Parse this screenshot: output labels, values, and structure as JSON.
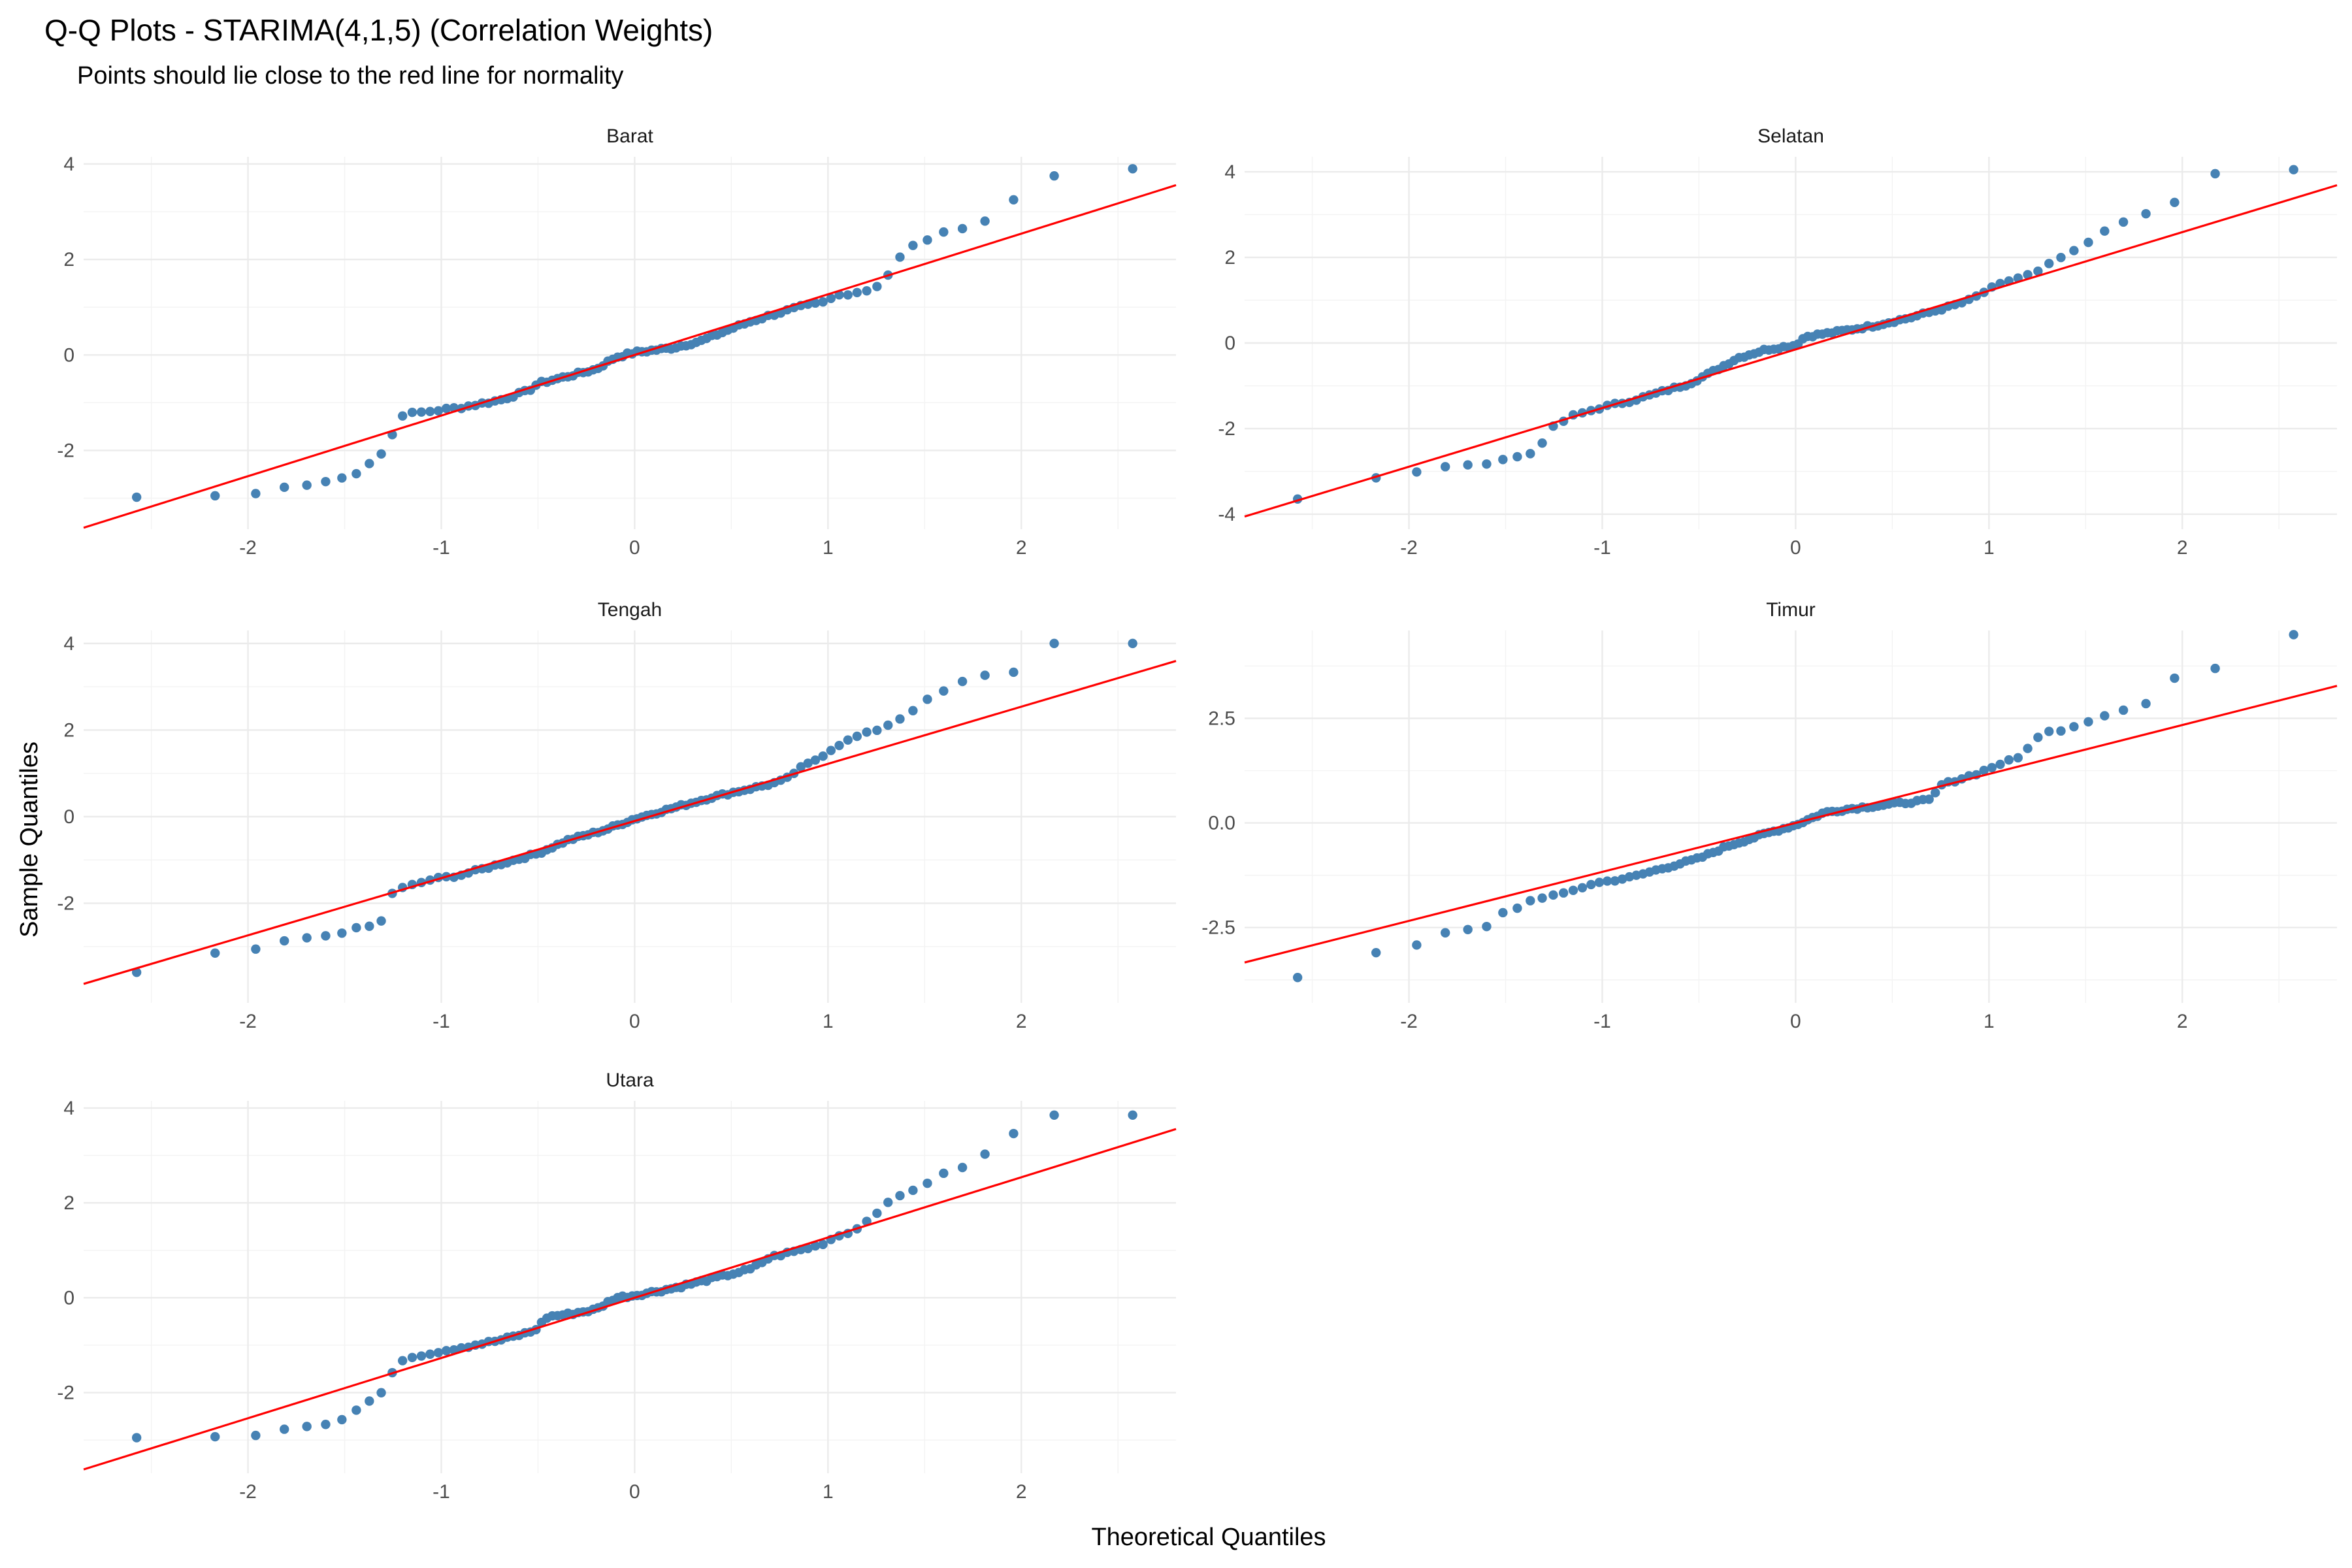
{
  "title": "Q-Q Plots - STARIMA(4,1,5) (Correlation Weights)",
  "subtitle": "Points should lie close to the red line for normality",
  "chart_data": {
    "type": "scatter",
    "facet_layout": "2 columns, 3 rows",
    "xlabel": "Theoretical Quantiles",
    "ylabel": "Sample Quantiles",
    "x_ticks": [
      -2,
      -1,
      0,
      1,
      2
    ],
    "xlim": [
      -2.85,
      2.8
    ],
    "grid": true,
    "point_color": "#4682B4",
    "line_color": "#FF0000",
    "panels": [
      {
        "name": "Barat",
        "ylim": [
          -3.65,
          4.15
        ],
        "y_ticks": [
          -2,
          0,
          2,
          4
        ],
        "y_tick_labels": [
          "-2",
          "0",
          "2",
          "4"
        ],
        "line": {
          "intercept": 0.0,
          "slope": 1.27
        },
        "anchors": [
          [
            -2.58,
            -2.98
          ],
          [
            -2.17,
            -2.95
          ],
          [
            -1.94,
            -2.9
          ],
          [
            -1.79,
            -2.75
          ],
          [
            -1.66,
            -2.72
          ],
          [
            -1.55,
            -2.6
          ],
          [
            -1.46,
            -2.55
          ],
          [
            -1.4,
            -2.3
          ],
          [
            -1.33,
            -2.2
          ],
          [
            -1.27,
            -1.8
          ],
          [
            -1.2,
            -1.25
          ],
          [
            -1.1,
            -1.2
          ],
          [
            -0.9,
            -1.1
          ],
          [
            -0.7,
            -0.95
          ],
          [
            -0.55,
            -0.75
          ],
          [
            -0.5,
            -0.6
          ],
          [
            -0.35,
            -0.45
          ],
          [
            -0.2,
            -0.3
          ],
          [
            -0.1,
            -0.05
          ],
          [
            0.0,
            0.05
          ],
          [
            0.2,
            0.15
          ],
          [
            0.35,
            0.3
          ],
          [
            0.5,
            0.55
          ],
          [
            0.6,
            0.7
          ],
          [
            0.72,
            0.85
          ],
          [
            0.85,
            1.0
          ],
          [
            0.98,
            1.1
          ],
          [
            1.05,
            1.25
          ],
          [
            1.2,
            1.35
          ],
          [
            1.28,
            1.5
          ],
          [
            1.4,
            2.2
          ],
          [
            1.5,
            2.4
          ],
          [
            1.6,
            2.55
          ],
          [
            1.75,
            2.7
          ],
          [
            1.9,
            2.95
          ],
          [
            1.97,
            3.3
          ],
          [
            2.17,
            3.75
          ],
          [
            2.55,
            3.9
          ]
        ]
      },
      {
        "name": "Selatan",
        "ylim": [
          -4.35,
          4.35
        ],
        "y_ticks": [
          -4,
          -2,
          0,
          2,
          4
        ],
        "y_tick_labels": [
          "-4",
          "-2",
          "0",
          "2",
          "4"
        ],
        "line": {
          "intercept": -0.15,
          "slope": 1.37
        },
        "anchors": [
          [
            -2.58,
            -3.65
          ],
          [
            -2.17,
            -3.15
          ],
          [
            -1.94,
            -3.0
          ],
          [
            -1.8,
            -2.88
          ],
          [
            -1.7,
            -2.85
          ],
          [
            -1.6,
            -2.8
          ],
          [
            -1.5,
            -2.7
          ],
          [
            -1.42,
            -2.65
          ],
          [
            -1.35,
            -2.55
          ],
          [
            -1.3,
            -2.25
          ],
          [
            -1.25,
            -1.95
          ],
          [
            -1.15,
            -1.7
          ],
          [
            -1.0,
            -1.5
          ],
          [
            -0.85,
            -1.35
          ],
          [
            -0.7,
            -1.15
          ],
          [
            -0.55,
            -0.95
          ],
          [
            -0.42,
            -0.65
          ],
          [
            -0.3,
            -0.35
          ],
          [
            -0.15,
            -0.15
          ],
          [
            0.0,
            -0.05
          ],
          [
            0.05,
            0.15
          ],
          [
            0.2,
            0.25
          ],
          [
            0.4,
            0.4
          ],
          [
            0.6,
            0.6
          ],
          [
            0.8,
            0.85
          ],
          [
            0.9,
            1.0
          ],
          [
            1.0,
            1.25
          ],
          [
            1.1,
            1.45
          ],
          [
            1.25,
            1.65
          ],
          [
            1.35,
            1.95
          ],
          [
            1.45,
            2.15
          ],
          [
            1.55,
            2.45
          ],
          [
            1.65,
            2.75
          ],
          [
            1.8,
            3.0
          ],
          [
            1.95,
            3.25
          ],
          [
            2.15,
            3.95
          ],
          [
            2.55,
            4.05
          ]
        ]
      },
      {
        "name": "Tengah",
        "ylim": [
          -4.3,
          4.3
        ],
        "y_ticks": [
          -2,
          0,
          2,
          4
        ],
        "y_tick_labels": [
          "-2",
          "0",
          "2",
          "4"
        ],
        "line": {
          "intercept": -0.1,
          "slope": 1.32
        },
        "anchors": [
          [
            -2.58,
            -3.6
          ],
          [
            -2.17,
            -3.15
          ],
          [
            -1.94,
            -3.05
          ],
          [
            -1.8,
            -2.85
          ],
          [
            -1.7,
            -2.8
          ],
          [
            -1.6,
            -2.75
          ],
          [
            -1.5,
            -2.65
          ],
          [
            -1.45,
            -2.6
          ],
          [
            -1.38,
            -2.55
          ],
          [
            -1.33,
            -2.45
          ],
          [
            -1.3,
            -2.4
          ],
          [
            -1.27,
            -1.8
          ],
          [
            -1.2,
            -1.65
          ],
          [
            -1.05,
            -1.45
          ],
          [
            -0.9,
            -1.35
          ],
          [
            -0.7,
            -1.1
          ],
          [
            -0.5,
            -0.85
          ],
          [
            -0.35,
            -0.55
          ],
          [
            -0.15,
            -0.3
          ],
          [
            0.0,
            -0.05
          ],
          [
            0.2,
            0.2
          ],
          [
            0.4,
            0.45
          ],
          [
            0.55,
            0.6
          ],
          [
            0.7,
            0.75
          ],
          [
            0.78,
            0.85
          ],
          [
            0.85,
            1.1
          ],
          [
            0.95,
            1.35
          ],
          [
            1.05,
            1.65
          ],
          [
            1.15,
            1.85
          ],
          [
            1.25,
            2.0
          ],
          [
            1.35,
            2.2
          ],
          [
            1.5,
            2.65
          ],
          [
            1.6,
            2.9
          ],
          [
            1.75,
            3.25
          ],
          [
            1.95,
            3.3
          ],
          [
            2.15,
            4.0
          ],
          [
            2.55,
            4.0
          ]
        ]
      },
      {
        "name": "Timur",
        "ylim": [
          -4.3,
          4.6
        ],
        "y_ticks": [
          -2.5,
          0,
          2.5
        ],
        "y_tick_labels": [
          "-2.5",
          "0.0",
          "2.5"
        ],
        "line": {
          "intercept": 0.0,
          "slope": 1.17
        },
        "anchors": [
          [
            -2.58,
            -3.7
          ],
          [
            -2.17,
            -3.1
          ],
          [
            -1.94,
            -2.9
          ],
          [
            -1.8,
            -2.6
          ],
          [
            -1.7,
            -2.55
          ],
          [
            -1.6,
            -2.5
          ],
          [
            -1.5,
            -2.1
          ],
          [
            -1.42,
            -2.0
          ],
          [
            -1.35,
            -1.8
          ],
          [
            -1.2,
            -1.7
          ],
          [
            -1.05,
            -1.45
          ],
          [
            -0.85,
            -1.3
          ],
          [
            -0.7,
            -1.1
          ],
          [
            -0.5,
            -0.85
          ],
          [
            -0.35,
            -0.55
          ],
          [
            -0.15,
            -0.25
          ],
          [
            0.0,
            -0.05
          ],
          [
            0.15,
            0.25
          ],
          [
            0.3,
            0.35
          ],
          [
            0.5,
            0.45
          ],
          [
            0.7,
            0.55
          ],
          [
            0.75,
            0.9
          ],
          [
            0.85,
            1.05
          ],
          [
            0.95,
            1.2
          ],
          [
            1.05,
            1.4
          ],
          [
            1.15,
            1.55
          ],
          [
            1.2,
            1.8
          ],
          [
            1.28,
            2.15
          ],
          [
            1.4,
            2.25
          ],
          [
            1.55,
            2.5
          ],
          [
            1.65,
            2.65
          ],
          [
            1.8,
            2.8
          ],
          [
            1.95,
            3.45
          ],
          [
            2.15,
            3.65
          ],
          [
            2.55,
            4.5
          ]
        ]
      },
      {
        "name": "Utara",
        "ylim": [
          -3.7,
          4.15
        ],
        "y_ticks": [
          -2,
          0,
          2,
          4
        ],
        "y_tick_labels": [
          "-2",
          "0",
          "2",
          "4"
        ],
        "line": {
          "intercept": 0.0,
          "slope": 1.27
        },
        "anchors": [
          [
            -2.58,
            -2.95
          ],
          [
            -2.17,
            -2.93
          ],
          [
            -1.94,
            -2.9
          ],
          [
            -1.79,
            -2.75
          ],
          [
            -1.66,
            -2.7
          ],
          [
            -1.55,
            -2.6
          ],
          [
            -1.47,
            -2.5
          ],
          [
            -1.4,
            -2.2
          ],
          [
            -1.33,
            -2.15
          ],
          [
            -1.27,
            -1.7
          ],
          [
            -1.2,
            -1.3
          ],
          [
            -1.1,
            -1.2
          ],
          [
            -0.9,
            -1.05
          ],
          [
            -0.7,
            -0.9
          ],
          [
            -0.52,
            -0.7
          ],
          [
            -0.45,
            -0.4
          ],
          [
            -0.35,
            -0.35
          ],
          [
            -0.2,
            -0.25
          ],
          [
            -0.1,
            0.0
          ],
          [
            0.0,
            0.05
          ],
          [
            0.2,
            0.2
          ],
          [
            0.4,
            0.4
          ],
          [
            0.6,
            0.6
          ],
          [
            0.7,
            0.85
          ],
          [
            0.85,
            1.0
          ],
          [
            0.95,
            1.1
          ],
          [
            1.05,
            1.3
          ],
          [
            1.15,
            1.45
          ],
          [
            1.25,
            1.8
          ],
          [
            1.35,
            2.1
          ],
          [
            1.45,
            2.3
          ],
          [
            1.55,
            2.5
          ],
          [
            1.65,
            2.7
          ],
          [
            1.75,
            2.8
          ],
          [
            1.9,
            3.35
          ],
          [
            2.17,
            3.85
          ],
          [
            2.55,
            3.85
          ]
        ]
      }
    ]
  }
}
